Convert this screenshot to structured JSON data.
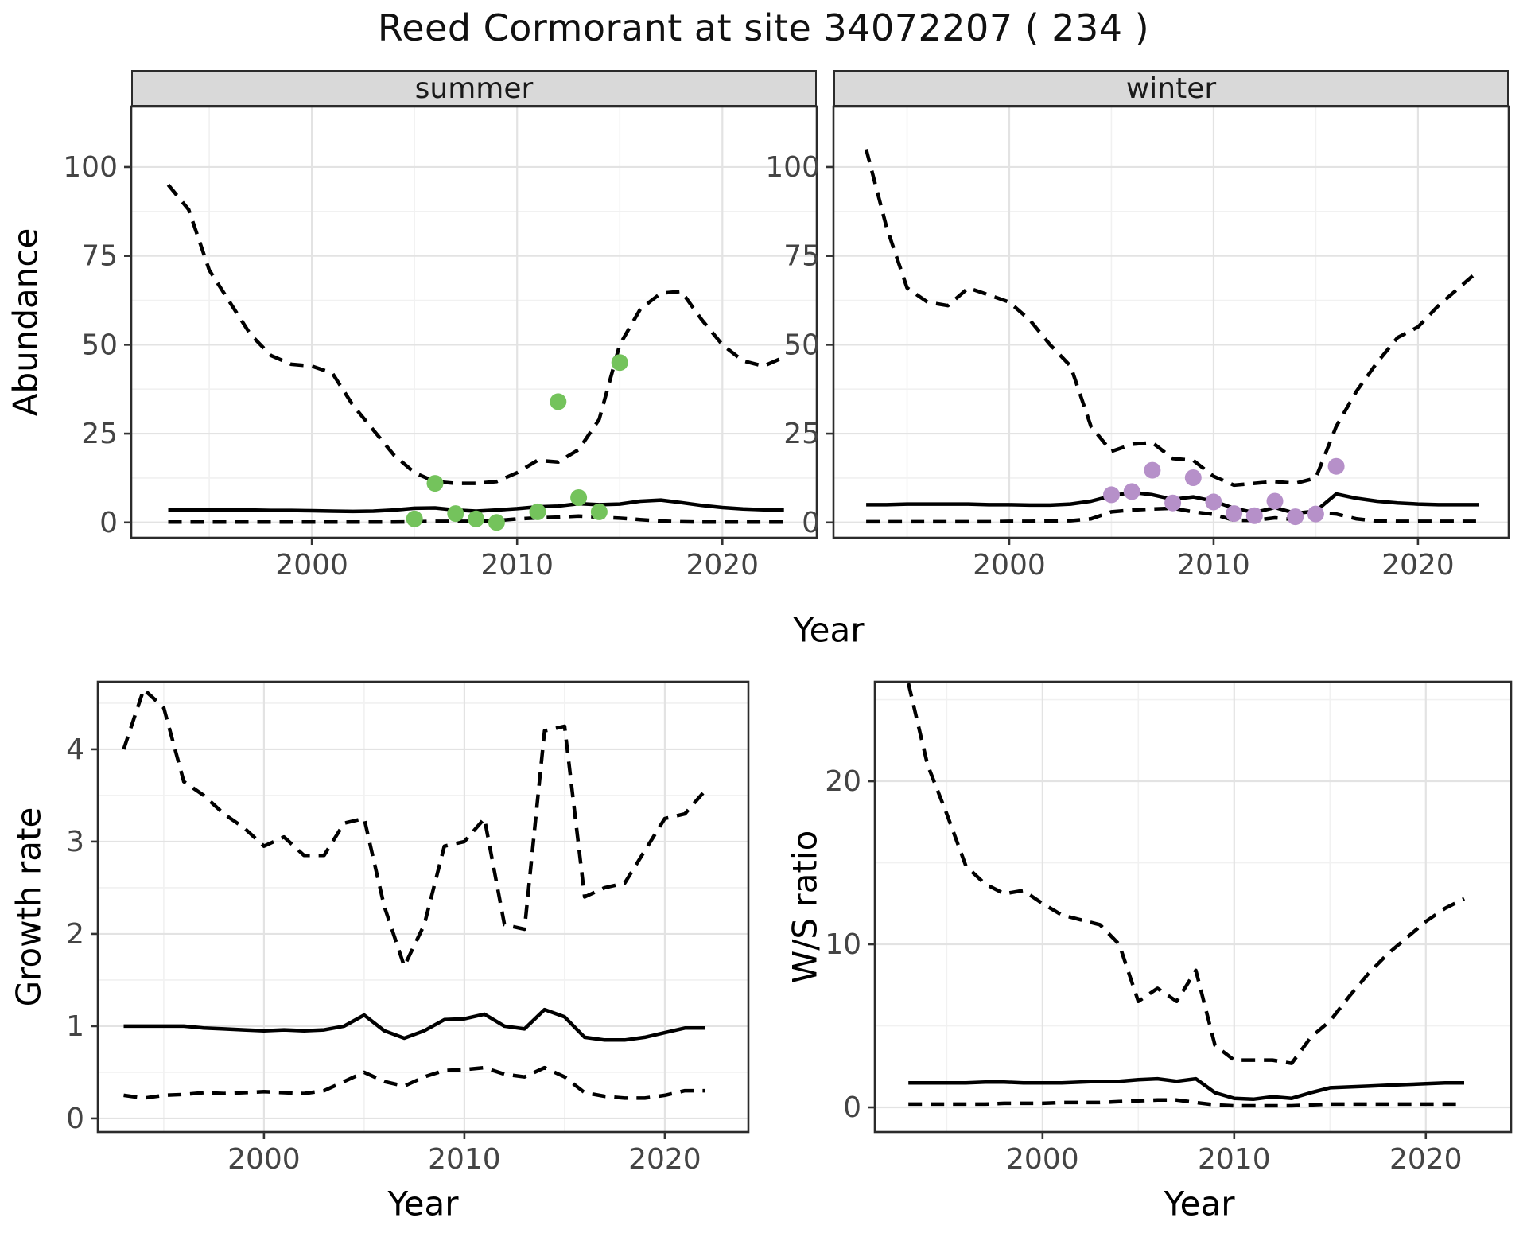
{
  "title": "Reed Cormorant at site 34072207 ( 234 )",
  "facets": {
    "summer": "summer",
    "winter": "winter"
  },
  "labels": {
    "abundance": "Abundance",
    "year": "Year",
    "growth_rate": "Growth rate",
    "ws_ratio": "W/S ratio"
  },
  "colors": {
    "summer_points": "#74C35C",
    "winter_points": "#B690C9",
    "line": "#000000",
    "strip_bg": "#D9D9D9",
    "grid_major": "#E3E3E3",
    "grid_minor": "#F1F1F1",
    "axis_text": "#444444",
    "border": "#2B2B2B"
  },
  "chart_data": [
    {
      "id": "abundance-summer",
      "type": "line",
      "facet": "summer",
      "ylabel": "Abundance",
      "xlabel": "Year",
      "x": [
        1993,
        1994,
        1995,
        1996,
        1997,
        1998,
        1999,
        2000,
        2001,
        2002,
        2003,
        2004,
        2005,
        2006,
        2007,
        2008,
        2009,
        2010,
        2011,
        2012,
        2013,
        2014,
        2015,
        2016,
        2017,
        2018,
        2019,
        2020,
        2021,
        2022,
        2023
      ],
      "series": [
        {
          "name": "upper 95% credible interval",
          "key": "upper",
          "style": "dashed",
          "values": [
            95,
            88,
            71,
            62,
            53,
            47,
            44.5,
            44,
            42,
            33,
            26,
            19,
            14,
            11.5,
            11,
            11,
            11.5,
            14,
            17.5,
            17,
            20.5,
            29,
            50,
            60,
            64.5,
            65,
            57,
            50,
            45.5,
            44,
            46.5
          ]
        },
        {
          "name": "median model estimate",
          "key": "median",
          "style": "solid",
          "values": [
            3.5,
            3.5,
            3.5,
            3.5,
            3.5,
            3.4,
            3.4,
            3.3,
            3.2,
            3.1,
            3.2,
            3.5,
            4.0,
            4.1,
            3.5,
            3.2,
            3.5,
            3.9,
            4.4,
            4.6,
            5.3,
            5.0,
            5.2,
            6.0,
            6.3,
            5.6,
            4.8,
            4.2,
            3.8,
            3.6,
            3.6
          ]
        },
        {
          "name": "lower 95% credible interval",
          "key": "lower",
          "style": "dashed",
          "values": [
            0.1,
            0.1,
            0.1,
            0.1,
            0.1,
            0.1,
            0.1,
            0.1,
            0.1,
            0.1,
            0.1,
            0.1,
            0.2,
            0.3,
            0.3,
            0.3,
            0.5,
            1.0,
            1.3,
            1.5,
            1.8,
            1.5,
            1.2,
            0.8,
            0.4,
            0.2,
            0.1,
            0.1,
            0.1,
            0.1,
            0.1
          ]
        }
      ],
      "points": {
        "name": "observed summer counts",
        "color_key": "summer_points",
        "x": [
          2005,
          2006,
          2007,
          2008,
          2009,
          2011,
          2012,
          2013,
          2014,
          2015
        ],
        "y": [
          1,
          11,
          2.5,
          1,
          0,
          3,
          34,
          7,
          3,
          45
        ]
      },
      "xticks": [
        2000,
        2010,
        2020
      ],
      "yticks": [
        0,
        25,
        50,
        75,
        100
      ],
      "xminor": [
        1995,
        2005,
        2015
      ],
      "yminor": [
        12.5,
        37.5,
        62.5,
        87.5
      ],
      "xlim": [
        1991.2,
        2024.6
      ],
      "ylim": [
        -4.3,
        117
      ]
    },
    {
      "id": "abundance-winter",
      "type": "line",
      "facet": "winter",
      "ylabel": "Abundance",
      "xlabel": "Year",
      "x": [
        1993,
        1994,
        1995,
        1996,
        1997,
        1998,
        1999,
        2000,
        2001,
        2002,
        2003,
        2004,
        2005,
        2006,
        2007,
        2008,
        2009,
        2010,
        2011,
        2012,
        2013,
        2014,
        2015,
        2016,
        2017,
        2018,
        2019,
        2020,
        2021,
        2022,
        2023
      ],
      "series": [
        {
          "name": "upper 95% credible interval",
          "key": "upper",
          "style": "dashed",
          "values": [
            105,
            83,
            66,
            62,
            61,
            66,
            64,
            62,
            57,
            50,
            44,
            27,
            20,
            22,
            22.5,
            18,
            17.5,
            13,
            10.5,
            11,
            11.5,
            11,
            12.5,
            27,
            37,
            45,
            52,
            55,
            61,
            66,
            71
          ]
        },
        {
          "name": "median model estimate",
          "key": "median",
          "style": "solid",
          "values": [
            5,
            5,
            5.2,
            5.2,
            5.2,
            5.2,
            5,
            5,
            4.9,
            4.9,
            5.2,
            6,
            7.5,
            8.5,
            7.8,
            6.5,
            7.2,
            6,
            4,
            2.8,
            4.2,
            2.6,
            3.2,
            8,
            6.8,
            6,
            5.5,
            5.2,
            5,
            5,
            5
          ]
        },
        {
          "name": "lower 95% credible interval",
          "key": "lower",
          "style": "dashed",
          "values": [
            0.2,
            0.2,
            0.2,
            0.2,
            0.2,
            0.2,
            0.2,
            0.3,
            0.3,
            0.4,
            0.5,
            1,
            3,
            3.5,
            3.8,
            4,
            3,
            2.3,
            0.6,
            0.6,
            1.3,
            0.8,
            2.8,
            2.4,
            1,
            0.4,
            0.3,
            0.3,
            0.3,
            0.3,
            0.3
          ]
        }
      ],
      "points": {
        "name": "observed winter counts",
        "color_key": "winter_points",
        "x": [
          2005,
          2006,
          2007,
          2008,
          2009,
          2010,
          2011,
          2012,
          2013,
          2014,
          2015,
          2016
        ],
        "y": [
          7.8,
          8.7,
          14.7,
          5.5,
          12.6,
          5.8,
          2.5,
          1.9,
          6,
          1.6,
          2.4,
          15.8
        ]
      },
      "xticks": [
        2000,
        2010,
        2020
      ],
      "yticks": [
        0,
        25,
        50,
        75,
        100
      ],
      "xminor": [
        1995,
        2005,
        2015
      ],
      "yminor": [
        12.5,
        37.5,
        62.5,
        87.5
      ],
      "xlim": [
        1991.4,
        2024.44
      ],
      "ylim": [
        -4.3,
        117
      ]
    },
    {
      "id": "growth-rate",
      "type": "line",
      "facet": null,
      "ylabel": "Growth rate",
      "xlabel": "Year",
      "x": [
        1993,
        1994,
        1995,
        1996,
        1997,
        1998,
        1999,
        2000,
        2001,
        2002,
        2003,
        2004,
        2005,
        2006,
        2007,
        2008,
        2009,
        2010,
        2011,
        2012,
        2013,
        2014,
        2015,
        2016,
        2017,
        2018,
        2019,
        2020,
        2021,
        2022
      ],
      "series": [
        {
          "name": "upper 95% credible interval",
          "key": "upper",
          "style": "dashed",
          "values": [
            4.0,
            4.65,
            4.45,
            3.65,
            3.5,
            3.3,
            3.15,
            2.95,
            3.05,
            2.85,
            2.85,
            3.2,
            3.25,
            2.3,
            1.65,
            2.1,
            2.95,
            3.0,
            3.25,
            2.1,
            2.05,
            4.2,
            4.25,
            2.4,
            2.5,
            2.55,
            2.9,
            3.25,
            3.3,
            3.55
          ]
        },
        {
          "name": "median model estimate",
          "key": "median",
          "style": "solid",
          "values": [
            1.0,
            1.0,
            1.0,
            1.0,
            0.98,
            0.97,
            0.96,
            0.95,
            0.96,
            0.95,
            0.96,
            1.0,
            1.12,
            0.95,
            0.87,
            0.95,
            1.07,
            1.08,
            1.13,
            1.0,
            0.97,
            1.18,
            1.1,
            0.88,
            0.85,
            0.85,
            0.88,
            0.93,
            0.98,
            0.98
          ]
        },
        {
          "name": "lower 95% credible interval",
          "key": "lower",
          "style": "dashed",
          "values": [
            0.25,
            0.22,
            0.25,
            0.26,
            0.28,
            0.27,
            0.28,
            0.29,
            0.28,
            0.27,
            0.3,
            0.4,
            0.5,
            0.4,
            0.35,
            0.45,
            0.52,
            0.53,
            0.55,
            0.48,
            0.45,
            0.55,
            0.45,
            0.28,
            0.24,
            0.22,
            0.22,
            0.25,
            0.3,
            0.3
          ]
        }
      ],
      "points": null,
      "xticks": [
        2000,
        2010,
        2020
      ],
      "yticks": [
        0,
        1,
        2,
        3,
        4
      ],
      "xminor": [
        1995,
        2005,
        2015
      ],
      "yminor": [
        0.5,
        1.5,
        2.5,
        3.5,
        4.5
      ],
      "xlim": [
        1991.71,
        2024.17
      ],
      "ylim": [
        -0.147,
        4.732
      ]
    },
    {
      "id": "ws-ratio",
      "type": "line",
      "facet": null,
      "ylabel": "W/S ratio",
      "xlabel": "Year",
      "x": [
        1993,
        1994,
        1995,
        1996,
        1997,
        1998,
        1999,
        2000,
        2001,
        2002,
        2003,
        2004,
        2005,
        2006,
        2007,
        2008,
        2009,
        2010,
        2011,
        2012,
        2013,
        2014,
        2015,
        2016,
        2017,
        2018,
        2019,
        2020,
        2021,
        2022
      ],
      "series": [
        {
          "name": "upper 95% credible interval",
          "key": "upper",
          "style": "dashed",
          "values": [
            26,
            21,
            18,
            14.8,
            13.7,
            13.1,
            13.3,
            12.5,
            11.8,
            11.5,
            11.2,
            10,
            6.5,
            7.3,
            6.5,
            8.4,
            3.8,
            2.9,
            2.9,
            2.9,
            2.7,
            4.3,
            5.3,
            6.8,
            8.2,
            9.4,
            10.4,
            11.4,
            12.2,
            12.8
          ]
        },
        {
          "name": "median model estimate",
          "key": "median",
          "style": "solid",
          "values": [
            1.5,
            1.5,
            1.5,
            1.5,
            1.55,
            1.55,
            1.5,
            1.5,
            1.5,
            1.55,
            1.6,
            1.6,
            1.7,
            1.75,
            1.6,
            1.75,
            0.9,
            0.55,
            0.5,
            0.65,
            0.55,
            0.9,
            1.2,
            1.25,
            1.3,
            1.35,
            1.4,
            1.45,
            1.5,
            1.5
          ]
        },
        {
          "name": "lower 95% credible interval",
          "key": "lower",
          "style": "dashed",
          "values": [
            0.2,
            0.2,
            0.2,
            0.2,
            0.2,
            0.25,
            0.25,
            0.25,
            0.3,
            0.3,
            0.3,
            0.35,
            0.4,
            0.45,
            0.45,
            0.3,
            0.15,
            0.1,
            0.1,
            0.1,
            0.1,
            0.15,
            0.2,
            0.2,
            0.2,
            0.2,
            0.2,
            0.2,
            0.2,
            0.2
          ]
        }
      ],
      "points": null,
      "xticks": [
        2000,
        2010,
        2020
      ],
      "yticks": [
        0,
        10,
        20
      ],
      "xminor": [
        1995,
        2005,
        2015
      ],
      "yminor": [
        5,
        15,
        25
      ],
      "xlim": [
        1991.25,
        2024.45
      ],
      "ylim": [
        -1.512,
        26.1
      ]
    }
  ]
}
